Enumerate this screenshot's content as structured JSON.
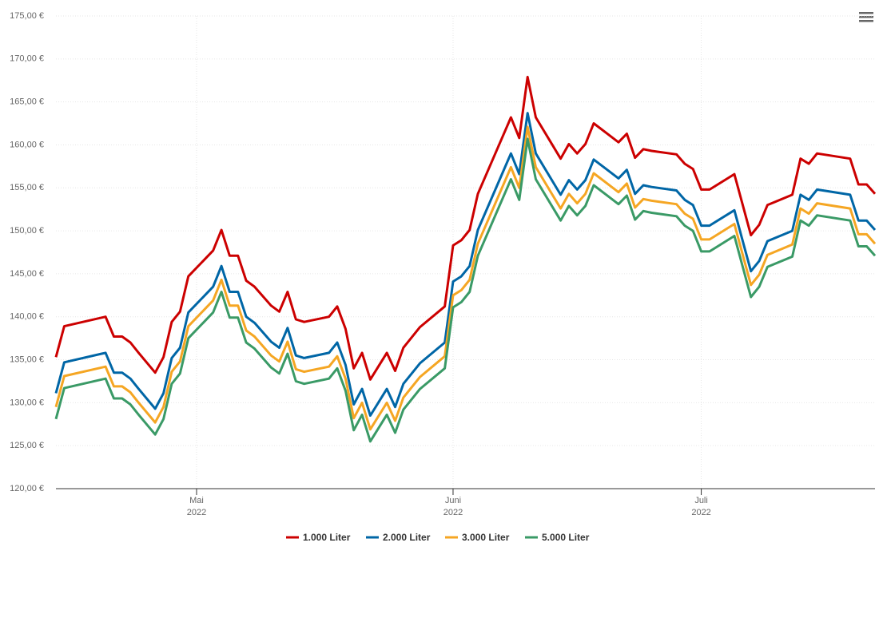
{
  "chart_data": {
    "type": "line",
    "x": [
      -17,
      -16,
      -11,
      -10,
      -9,
      -8,
      -7,
      -5,
      -4,
      -3,
      -2,
      -1,
      2,
      3,
      4,
      5,
      6,
      7,
      9,
      10,
      11,
      12,
      13,
      16,
      17,
      18,
      19,
      20,
      21,
      23,
      24,
      25,
      27,
      30,
      31,
      32,
      33,
      34,
      38,
      39,
      40,
      41,
      44,
      45,
      46,
      47,
      48,
      51,
      52,
      53,
      54,
      55,
      58,
      59,
      60,
      61,
      62,
      65,
      67,
      68,
      69,
      72,
      73,
      74,
      75,
      79,
      80,
      81,
      82
    ],
    "series": [
      {
        "name": "1.000 Liter",
        "color": "#cc0000",
        "values": [
          135.3,
          138.9,
          140.0,
          137.7,
          137.7,
          137.0,
          135.8,
          133.5,
          135.3,
          139.4,
          140.6,
          144.7,
          147.7,
          150.1,
          147.1,
          147.1,
          144.2,
          143.5,
          141.3,
          140.6,
          142.9,
          139.7,
          139.4,
          140.0,
          141.2,
          138.6,
          134.0,
          135.8,
          132.7,
          135.8,
          133.7,
          136.4,
          138.8,
          141.2,
          148.3,
          148.9,
          150.1,
          154.3,
          163.2,
          160.8,
          167.9,
          163.2,
          158.4,
          160.1,
          159.0,
          160.1,
          162.5,
          160.3,
          161.3,
          158.5,
          159.5,
          159.3,
          158.9,
          157.8,
          157.2,
          154.8,
          154.8,
          156.6,
          149.5,
          150.7,
          153.0,
          154.2,
          158.4,
          157.8,
          159.0,
          158.4,
          155.4,
          155.4,
          154.3
        ]
      },
      {
        "name": "2.000 Liter",
        "color": "#0066a6",
        "values": [
          131.1,
          134.7,
          135.8,
          133.5,
          133.5,
          132.8,
          131.6,
          129.3,
          131.1,
          135.2,
          136.4,
          140.5,
          143.5,
          145.9,
          142.9,
          142.9,
          140.0,
          139.3,
          137.1,
          136.4,
          138.7,
          135.5,
          135.2,
          135.8,
          137.0,
          134.4,
          129.8,
          131.6,
          128.5,
          131.6,
          129.5,
          132.2,
          134.6,
          137.0,
          144.1,
          144.7,
          145.9,
          150.1,
          159.0,
          156.6,
          163.7,
          159.0,
          154.2,
          155.9,
          154.8,
          155.9,
          158.3,
          156.1,
          157.1,
          154.3,
          155.3,
          155.1,
          154.7,
          153.6,
          153.0,
          150.6,
          150.6,
          152.4,
          145.3,
          146.5,
          148.8,
          150.0,
          154.2,
          153.6,
          154.8,
          154.2,
          151.2,
          151.2,
          150.1
        ]
      },
      {
        "name": "3.000 Liter",
        "color": "#f5a623",
        "values": [
          129.5,
          133.1,
          134.2,
          131.9,
          131.9,
          131.2,
          130.0,
          127.7,
          129.5,
          133.6,
          134.8,
          138.9,
          141.9,
          144.3,
          141.3,
          141.3,
          138.4,
          137.7,
          135.5,
          134.8,
          137.1,
          133.9,
          133.6,
          134.2,
          135.4,
          132.8,
          128.2,
          130.0,
          126.9,
          130.0,
          127.9,
          130.6,
          133.0,
          135.4,
          142.5,
          143.1,
          144.3,
          148.5,
          157.4,
          155.0,
          162.1,
          157.4,
          152.6,
          154.3,
          153.2,
          154.3,
          156.7,
          154.5,
          155.5,
          152.7,
          153.7,
          153.5,
          153.1,
          152.0,
          151.4,
          149.0,
          149.0,
          150.8,
          143.7,
          144.9,
          147.2,
          148.4,
          152.6,
          152.0,
          153.2,
          152.6,
          149.6,
          149.6,
          148.5
        ]
      },
      {
        "name": "5.000 Liter",
        "color": "#3a9a66",
        "values": [
          128.1,
          131.7,
          132.8,
          130.5,
          130.5,
          129.8,
          128.6,
          126.3,
          128.1,
          132.2,
          133.4,
          137.5,
          140.5,
          142.9,
          139.9,
          139.9,
          137.0,
          136.3,
          134.1,
          133.4,
          135.7,
          132.5,
          132.2,
          132.8,
          134.0,
          131.4,
          126.8,
          128.6,
          125.5,
          128.6,
          126.5,
          129.2,
          131.6,
          134.0,
          141.1,
          141.7,
          142.9,
          147.1,
          156.0,
          153.6,
          160.7,
          156.0,
          151.2,
          152.9,
          151.8,
          152.9,
          155.3,
          153.1,
          154.1,
          151.3,
          152.3,
          152.1,
          151.7,
          150.6,
          150.0,
          147.6,
          147.6,
          149.4,
          142.3,
          143.5,
          145.8,
          147.0,
          151.2,
          150.6,
          151.8,
          151.2,
          148.2,
          148.2,
          147.1
        ]
      }
    ],
    "xlim": [
      -17,
      82
    ],
    "xticks": [
      {
        "value": 0,
        "label": "Mai",
        "sublabel": "2022"
      },
      {
        "value": 31,
        "label": "Juni",
        "sublabel": "2022"
      },
      {
        "value": 61,
        "label": "Juli",
        "sublabel": "2022"
      }
    ],
    "ylim": [
      120,
      175
    ],
    "yticks": [
      {
        "value": 120,
        "label": "120,00 €"
      },
      {
        "value": 125,
        "label": "125,00 €"
      },
      {
        "value": 130,
        "label": "130,00 €"
      },
      {
        "value": 135,
        "label": "135,00 €"
      },
      {
        "value": 140,
        "label": "140,00 €"
      },
      {
        "value": 145,
        "label": "145,00 €"
      },
      {
        "value": 150,
        "label": "150,00 €"
      },
      {
        "value": 155,
        "label": "155,00 €"
      },
      {
        "value": 160,
        "label": "160,00 €"
      },
      {
        "value": 165,
        "label": "165,00 €"
      },
      {
        "value": 170,
        "label": "170,00 €"
      },
      {
        "value": 175,
        "label": "175,00 €"
      }
    ],
    "grid": true,
    "legend": "bottom"
  }
}
